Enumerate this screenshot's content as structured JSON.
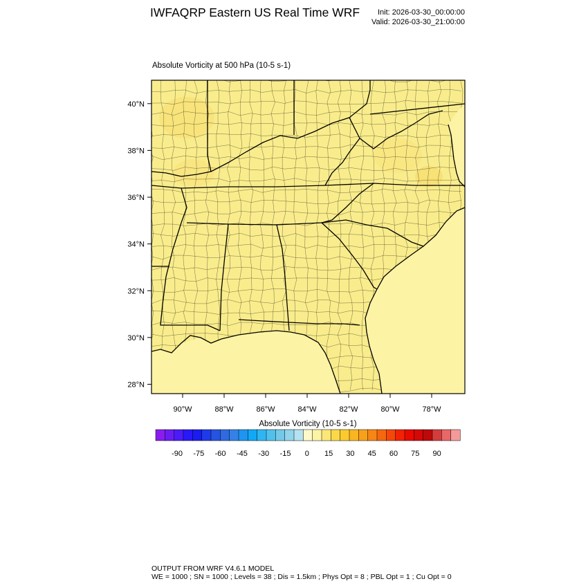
{
  "header": {
    "title": "IWFAQRP Eastern US Real Time WRF",
    "init": "Init: 2026-03-30_00:00:00",
    "valid": "Valid: 2026-03-30_21:00:00"
  },
  "field": {
    "title": "Absolute Vorticity at 500 hPa   (10-5 s-1)"
  },
  "map": {
    "lat_labels": [
      "40°N",
      "38°N",
      "36°N",
      "34°N",
      "32°N",
      "30°N",
      "28°N"
    ],
    "lon_labels": [
      "90°W",
      "88°W",
      "86°W",
      "84°W",
      "82°W",
      "80°W",
      "78°W"
    ],
    "lat_values": [
      40,
      38,
      36,
      34,
      32,
      30,
      28
    ],
    "lon_values": [
      -90,
      -88,
      -86,
      -84,
      -82,
      -80,
      -78
    ],
    "lat_range": [
      27.6,
      41.0
    ],
    "lon_range": [
      -91.5,
      -76.4
    ],
    "field_color": "#f9ec8c",
    "ocean_color": "#fcf3a4",
    "border_color": "#000000"
  },
  "colorbar": {
    "title": "Absolute Vorticity  (10-5 s-1)",
    "tick_labels": [
      "-90",
      "-75",
      "-60",
      "-45",
      "-30",
      "-15",
      "0",
      "15",
      "30",
      "45",
      "60",
      "75",
      "90"
    ],
    "colors": [
      "#8a1dee",
      "#6a1df2",
      "#4a1cf7",
      "#2a18f9",
      "#1a1cf0",
      "#1e3be8",
      "#2653e0",
      "#2f6ae0",
      "#3482e6",
      "#1e95f0",
      "#12a8f6",
      "#2fb6f2",
      "#52c0ec",
      "#73cae8",
      "#92d4ea",
      "#b4e2f0",
      "#fef9c8",
      "#fcf3a4",
      "#fbe778",
      "#fbd84a",
      "#fbca2e",
      "#f9b522",
      "#f8a01a",
      "#f78614",
      "#f6680e",
      "#f54808",
      "#f22204",
      "#e80a02",
      "#d40808",
      "#bc0a0a",
      "#d43c3c",
      "#e86868",
      "#f59a9a"
    ]
  },
  "footer": {
    "line1": "OUTPUT FROM WRF V4.6.1 MODEL",
    "line2": "WE = 1000 ; SN = 1000 ; Levels = 38 ; Dis = 1.5km ; Phys Opt = 8 ; PBL Opt = 1 ; Cu Opt = 0"
  }
}
